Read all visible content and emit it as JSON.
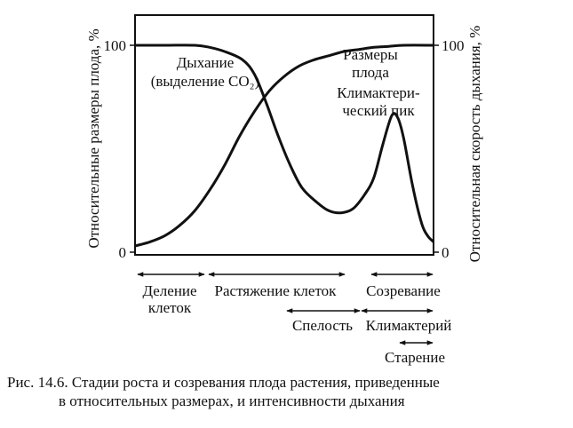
{
  "chart_data": {
    "type": "line",
    "x_domain": [
      0,
      100
    ],
    "left_axis": {
      "label": "Относительные размеры плода, %",
      "ticks": [
        "0",
        "100"
      ],
      "ylim": [
        0,
        100
      ]
    },
    "right_axis": {
      "label": "Относительная скорость дыхания, %",
      "ticks": [
        "0",
        "100"
      ],
      "ylim": [
        0,
        100
      ]
    },
    "series": [
      {
        "name": "Размеры плода",
        "label_lines": [
          "Размеры",
          "плода"
        ],
        "color": "#111111",
        "points": [
          [
            0,
            3
          ],
          [
            5,
            5
          ],
          [
            10,
            8
          ],
          [
            15,
            13
          ],
          [
            20,
            20
          ],
          [
            25,
            30
          ],
          [
            30,
            42
          ],
          [
            35,
            56
          ],
          [
            40,
            68
          ],
          [
            45,
            78
          ],
          [
            50,
            85
          ],
          [
            55,
            90
          ],
          [
            60,
            93
          ],
          [
            65,
            95
          ],
          [
            70,
            97
          ],
          [
            75,
            98
          ],
          [
            80,
            99
          ],
          [
            85,
            99.5
          ],
          [
            90,
            100
          ],
          [
            100,
            100
          ]
        ]
      },
      {
        "name": "Дыхание (выделение CO₂)",
        "label_lines": [
          "Дыхание",
          "(выделение CO₂)"
        ],
        "color": "#111111",
        "points": [
          [
            0,
            100
          ],
          [
            10,
            100
          ],
          [
            20,
            100
          ],
          [
            25,
            99
          ],
          [
            30,
            97
          ],
          [
            36,
            93
          ],
          [
            40,
            86
          ],
          [
            44,
            72
          ],
          [
            48,
            56
          ],
          [
            52,
            42
          ],
          [
            56,
            31
          ],
          [
            61,
            24
          ],
          [
            65,
            20
          ],
          [
            69,
            19
          ],
          [
            73,
            21
          ],
          [
            77,
            28
          ],
          [
            80,
            36
          ],
          [
            83,
            52
          ],
          [
            86,
            66
          ],
          [
            88,
            65
          ],
          [
            90,
            55
          ],
          [
            93,
            32
          ],
          [
            96,
            14
          ],
          [
            98,
            8
          ],
          [
            100,
            5
          ]
        ]
      }
    ],
    "annotations": [
      {
        "text_lines": [
          "Климактери-",
          "ческий пик"
        ]
      }
    ],
    "stages": [
      {
        "label_lines": [
          "Деление",
          "клеток"
        ],
        "range": [
          0,
          20
        ]
      },
      {
        "label_lines": [
          "Растяжение клеток"
        ],
        "range": [
          20,
          68
        ]
      },
      {
        "label_lines": [
          "Созревание"
        ],
        "range": [
          76,
          100
        ]
      },
      {
        "label_lines": [
          "Спелость"
        ],
        "range": [
          50,
          75
        ]
      },
      {
        "label_lines": [
          "Климактерий"
        ],
        "range": [
          75,
          100
        ]
      },
      {
        "label_lines": [
          "Старение"
        ],
        "range": [
          90,
          100
        ]
      }
    ]
  },
  "caption": {
    "line1": "Рис. 14.6. Стадии роста и созревания плода растения, приведенные",
    "line2": "в относительных размерах, и интенсивности дыхания"
  }
}
